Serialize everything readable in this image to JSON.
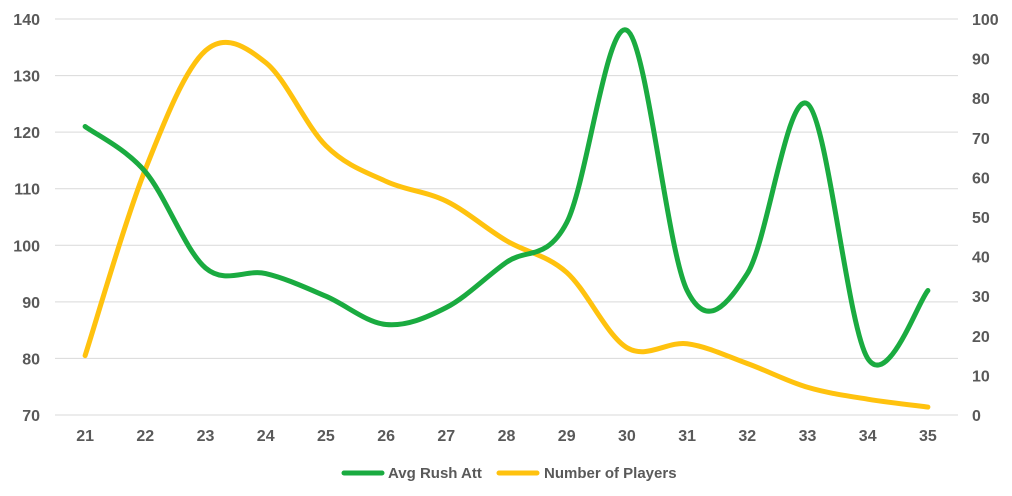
{
  "chart_data": {
    "type": "line",
    "smooth": true,
    "x": [
      "21",
      "22",
      "23",
      "24",
      "25",
      "26",
      "27",
      "28",
      "29",
      "30",
      "31",
      "32",
      "33",
      "34",
      "35"
    ],
    "series": [
      {
        "name": "Avg Rush Att",
        "axis": "left",
        "color": "#1aab40",
        "values": [
          121,
          113,
          96,
          95,
          91,
          86,
          89,
          97,
          104,
          138,
          92,
          95,
          125,
          80,
          92
        ]
      },
      {
        "name": "Number of Players",
        "axis": "right",
        "color": "#ffc20e",
        "values": [
          15,
          62,
          92,
          89,
          68,
          59,
          54,
          44,
          36,
          17,
          18,
          13,
          7,
          4,
          2
        ]
      }
    ],
    "y_left": {
      "min": 70,
      "max": 140,
      "step": 10,
      "ticks": [
        "70",
        "80",
        "90",
        "100",
        "110",
        "120",
        "130",
        "140"
      ]
    },
    "y_right": {
      "min": 0,
      "max": 100,
      "step": 10,
      "ticks": [
        "0",
        "10",
        "20",
        "30",
        "40",
        "50",
        "60",
        "70",
        "80",
        "90",
        "100"
      ]
    },
    "grid": "horizontal",
    "grid_color": "#d9d9d9",
    "legend": "bottom"
  }
}
